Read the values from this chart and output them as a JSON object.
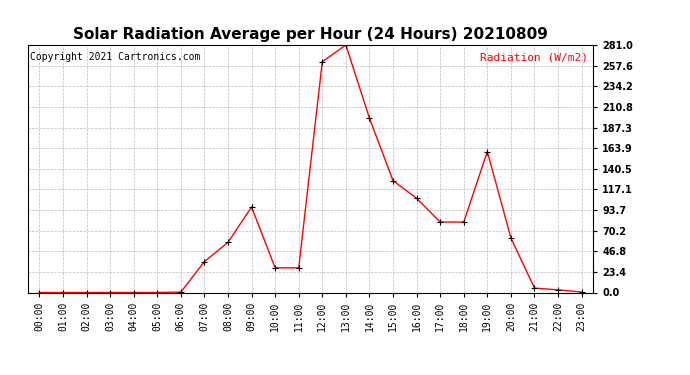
{
  "title": "Solar Radiation Average per Hour (24 Hours) 20210809",
  "copyright_text": "Copyright 2021 Cartronics.com",
  "ylabel": "Radiation (W/m2)",
  "hours": [
    0,
    1,
    2,
    3,
    4,
    5,
    6,
    7,
    8,
    9,
    10,
    11,
    12,
    13,
    14,
    15,
    16,
    17,
    18,
    19,
    20,
    21,
    22,
    23
  ],
  "values": [
    0.0,
    0.0,
    0.0,
    0.0,
    0.0,
    0.0,
    0.5,
    35.0,
    57.0,
    97.0,
    28.0,
    28.0,
    262.0,
    281.0,
    198.0,
    127.0,
    107.0,
    80.0,
    80.0,
    160.0,
    62.0,
    5.0,
    3.0,
    0.5
  ],
  "line_color": "red",
  "marker_color": "black",
  "background_color": "white",
  "grid_color": "#bbbbbb",
  "title_fontsize": 11,
  "label_fontsize": 8,
  "tick_fontsize": 7,
  "copyright_fontsize": 7,
  "ylim": [
    0.0,
    281.0
  ],
  "yticks": [
    0.0,
    23.4,
    46.8,
    70.2,
    93.7,
    117.1,
    140.5,
    163.9,
    187.3,
    210.8,
    234.2,
    257.6,
    281.0
  ]
}
